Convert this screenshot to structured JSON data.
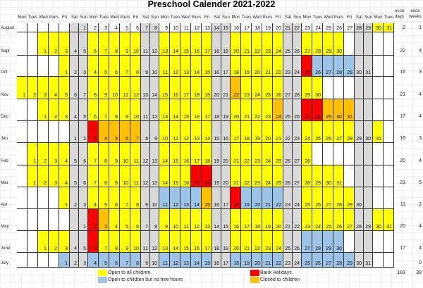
{
  "title": "Preschool Calender 2021-2022",
  "day_headers": [
    "Mon",
    "Tues",
    "Wed",
    "thurs",
    "Fri",
    "Sat",
    "Sun",
    "Mon",
    "Tues",
    "Wed",
    "thurs",
    "Fri",
    "Sat",
    "Sun",
    "Mon",
    "Tues",
    "Wed",
    "thurs",
    "Fri",
    "Sat",
    "Sun",
    "Mon",
    "Tues",
    "Wed",
    "thurs",
    "Fri",
    "Sat",
    "Sun",
    "Mon",
    "Tues",
    "Wed",
    "thurs",
    "Fri",
    "Sat",
    "Sun",
    "Mon",
    "Tues"
  ],
  "ecce_headers": {
    "days": "ecce days",
    "weeks": "ecce weeks"
  },
  "colors": {
    "open_all": "#ffff00",
    "open_no_free": "#9dc3e6",
    "bank_holiday": "#ff0000",
    "closed": "#ffc000",
    "weekend": "#d9d9d9"
  },
  "legend": [
    {
      "color": "#ffff00",
      "label": "Open to all children"
    },
    {
      "color": "#9dc3e6",
      "label": "Open to children but no free hours"
    },
    {
      "color": "#ff0000",
      "label": "Bank Holidays"
    },
    {
      "color": "#ffc000",
      "label": "Closed to children"
    }
  ],
  "totals": {
    "ecce_days": "183",
    "ecce_weeks": "38"
  },
  "months": [
    {
      "name": "August",
      "start": 6,
      "days": 31,
      "ecce_days": "2",
      "ecce_weeks": "1",
      "y": {
        "30": 1,
        "31": 1
      }
    },
    {
      "name": "Sept",
      "start": 2,
      "days": 30,
      "ecce_days": "22",
      "ecce_weeks": "4",
      "y": {
        "1": 1,
        "2": 1,
        "3": 1,
        "6": 1,
        "7": 1,
        "8": 1,
        "9": 1,
        "10": 1,
        "13": 1,
        "14": 1,
        "15": 1,
        "16": 1,
        "17": 1,
        "20": 1,
        "21": 1,
        "22": 1,
        "23": 1,
        "24": 1,
        "27": 1,
        "28": 1,
        "29": 1,
        "30": 1
      }
    },
    {
      "name": "Oct",
      "start": 4,
      "days": 31,
      "ecce_days": "16",
      "ecce_weeks": "3",
      "y": {
        "1": 1,
        "4": 1,
        "5": 1,
        "6": 1,
        "7": 1,
        "8": 1,
        "11": 1,
        "12": 1,
        "13": 1,
        "14": 1,
        "15": 1,
        "18": 1,
        "19": 1,
        "20": 1,
        "21": 1,
        "22": 1
      },
      "r": {
        "25": 1
      },
      "b": {
        "26": 1,
        "27": 1,
        "28": 1,
        "29": 1
      }
    },
    {
      "name": "Nov",
      "start": 0,
      "days": 30,
      "ecce_days": "21",
      "ecce_weeks": "4",
      "y": {
        "1": 1,
        "2": 1,
        "3": 1,
        "4": 1,
        "5": 1,
        "8": 1,
        "9": 1,
        "10": 1,
        "11": 1,
        "12": 1,
        "15": 1,
        "16": 1,
        "17": 1,
        "18": 1,
        "19": 1,
        "23": 1,
        "24": 1,
        "25": 1,
        "26": 1,
        "29": 1,
        "30": 1
      },
      "o": {
        "22": 1
      }
    },
    {
      "name": "Dec",
      "start": 2,
      "days": 31,
      "ecce_days": "17",
      "ecce_weeks": "4",
      "y": {
        "1": 1,
        "2": 1,
        "3": 1,
        "6": 1,
        "7": 1,
        "8": 1,
        "9": 1,
        "10": 1,
        "13": 1,
        "14": 1,
        "15": 1,
        "16": 1,
        "17": 1,
        "20": 1,
        "21": 1,
        "22": 1,
        "23": 1
      },
      "o": {
        "24": 1,
        "29": 1,
        "30": 1,
        "31": 1
      },
      "r": {
        "27": 1,
        "28": 1
      }
    },
    {
      "name": "Jan",
      "start": 5,
      "days": 31,
      "ecce_days": "16",
      "ecce_weeks": "3",
      "y": {
        "10": 1,
        "11": 1,
        "12": 1,
        "13": 1,
        "14": 1,
        "17": 1,
        "18": 1,
        "19": 1,
        "20": 1,
        "21": 1,
        "24": 1,
        "25": 1,
        "26": 1,
        "27": 1,
        "28": 1,
        "31": 1
      },
      "r": {
        "3": 1
      },
      "o": {
        "4": 1,
        "5": 1,
        "6": 1,
        "7": 1
      }
    },
    {
      "name": "Feb",
      "start": 1,
      "days": 28,
      "ecce_days": "20",
      "ecce_weeks": "4",
      "y": {
        "1": 1,
        "2": 1,
        "3": 1,
        "4": 1,
        "7": 1,
        "8": 1,
        "9": 1,
        "10": 1,
        "11": 1,
        "14": 1,
        "15": 1,
        "16": 1,
        "17": 1,
        "18": 1,
        "21": 1,
        "22": 1,
        "23": 1,
        "24": 1,
        "25": 1,
        "28": 1
      }
    },
    {
      "name": "Mar",
      "start": 1,
      "days": 31,
      "ecce_days": "21",
      "ecce_weeks": "5",
      "y": {
        "1": 1,
        "2": 1,
        "3": 1,
        "4": 1,
        "7": 1,
        "8": 1,
        "9": 1,
        "10": 1,
        "11": 1,
        "14": 1,
        "15": 1,
        "16": 1,
        "21": 1,
        "22": 1,
        "23": 1,
        "24": 1,
        "25": 1,
        "28": 1,
        "29": 1,
        "30": 1,
        "31": 1
      },
      "r": {
        "17": 1,
        "18": 1
      }
    },
    {
      "name": "Apr",
      "start": 4,
      "days": 30,
      "ecce_days": "11",
      "ecce_weeks": "2",
      "y": {
        "1": 1,
        "4": 1,
        "5": 1,
        "6": 1,
        "7": 1,
        "8": 1,
        "25": 1,
        "26": 1,
        "27": 1,
        "28": 1,
        "29": 1
      },
      "b": {
        "11": 1,
        "12": 1,
        "13": 1,
        "14": 1,
        "19": 1,
        "20": 1,
        "21": 1,
        "22": 1
      },
      "o": {
        "15": 1
      },
      "r": {
        "18": 1
      }
    },
    {
      "name": "May",
      "start": 6,
      "days": 31,
      "ecce_days": "20",
      "ecce_weeks": "4",
      "y": {
        "4": 1,
        "5": 1,
        "6": 1,
        "9": 1,
        "10": 1,
        "11": 1,
        "12": 1,
        "13": 1,
        "16": 1,
        "17": 1,
        "18": 1,
        "19": 1,
        "20": 1,
        "23": 1,
        "24": 1,
        "25": 1,
        "26": 1,
        "27": 1,
        "30": 1,
        "31": 1
      },
      "r": {
        "2": 1
      },
      "o": {
        "3": 1
      }
    },
    {
      "name": "June",
      "start": 2,
      "days": 30,
      "ecce_days": "17",
      "ecce_weeks": "4",
      "y": {
        "1": 1,
        "2": 1,
        "3": 1,
        "7": 1,
        "8": 1,
        "9": 1,
        "10": 1,
        "13": 1,
        "14": 1,
        "15": 1,
        "16": 1,
        "17": 1,
        "20": 1,
        "21": 1,
        "22": 1,
        "23": 1,
        "24": 1
      },
      "r": {
        "6": 1
      },
      "b": {
        "27": 1,
        "28": 1,
        "29": 1,
        "30": 1
      }
    },
    {
      "name": "July",
      "start": 4,
      "days": 31,
      "ecce_days": "",
      "ecce_weeks": "0",
      "b": {
        "1": 1,
        "4": 1,
        "5": 1,
        "6": 1,
        "7": 1,
        "8": 1,
        "11": 1,
        "12": 1,
        "13": 1,
        "14": 1,
        "15": 1,
        "18": 1,
        "19": 1,
        "20": 1,
        "21": 1,
        "22": 1,
        "25": 1,
        "26": 1,
        "27": 1,
        "28": 1,
        "29": 1
      }
    }
  ]
}
